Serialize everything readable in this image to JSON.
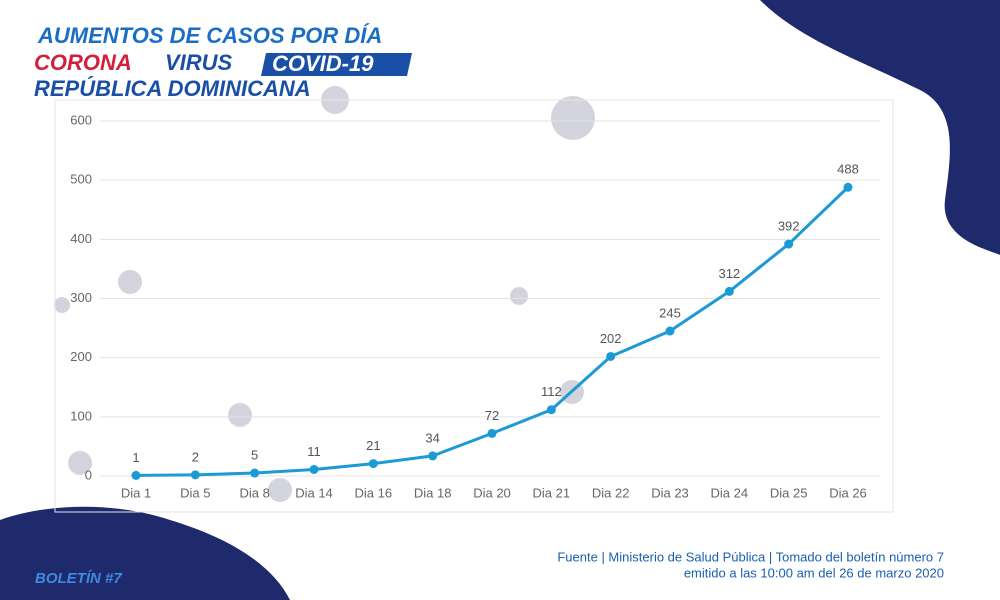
{
  "header": {
    "line1": "AUMENTOS DE CASOS POR DÍA",
    "corona": "CORONA",
    "virus": "VIRUS",
    "covid": "COVID-19",
    "country": "REPÚBLICA DOMINICANA"
  },
  "footer": {
    "source": "Fuente | Ministerio de Salud Pública | Tomado del boletín número 7",
    "issued": "emitido a las 10:00 am del 26 de marzo 2020",
    "bulletin": "BOLETÍN #7"
  },
  "chart_data": {
    "type": "line",
    "categories": [
      "Dia 1",
      "Dia 5",
      "Dia 8",
      "Dia 14",
      "Dia 16",
      "Dia 18",
      "Dia 20",
      "Dia 21",
      "Dia 22",
      "Dia 23",
      "Dia 24",
      "Dia 25",
      "Dia 26"
    ],
    "values": [
      1,
      2,
      5,
      11,
      21,
      34,
      72,
      112,
      202,
      245,
      312,
      392,
      488
    ],
    "color": "#1b9ad6",
    "ylim": [
      0,
      600
    ],
    "yticks": [
      0,
      100,
      200,
      300,
      400,
      500,
      600
    ],
    "grid": true
  }
}
